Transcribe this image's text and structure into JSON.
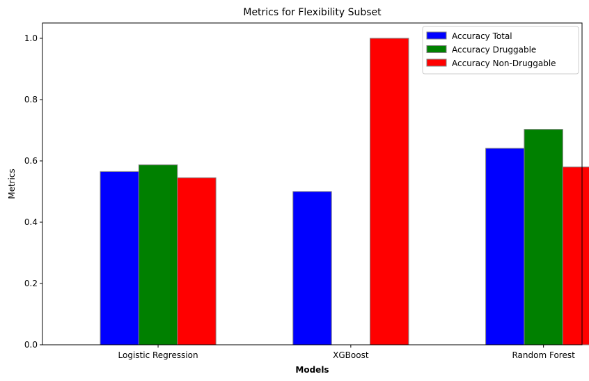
{
  "chart_data": {
    "type": "bar",
    "title": "Metrics for Flexibility Subset",
    "xlabel": "Models",
    "ylabel": "Metrics",
    "categories": [
      "Logistic Regression",
      "XGBoost",
      "Random Forest"
    ],
    "series": [
      {
        "name": "Accuracy Total",
        "color": "#0000ff",
        "values": [
          0.565,
          0.5,
          0.641
        ]
      },
      {
        "name": "Accuracy Druggable",
        "color": "#008000",
        "values": [
          0.587,
          0.0,
          0.703
        ]
      },
      {
        "name": "Accuracy Non-Druggable",
        "color": "#ff0000",
        "values": [
          0.545,
          1.0,
          0.58
        ]
      }
    ],
    "ylim": [
      0,
      1.05
    ],
    "yticks": [
      0.0,
      0.2,
      0.4,
      0.6,
      0.8,
      1.0
    ],
    "ytick_labels": [
      "0.0",
      "0.2",
      "0.4",
      "0.6",
      "0.8",
      "1.0"
    ],
    "bar_edge_color": "#808080",
    "grid": false,
    "legend_position": "top-right"
  }
}
